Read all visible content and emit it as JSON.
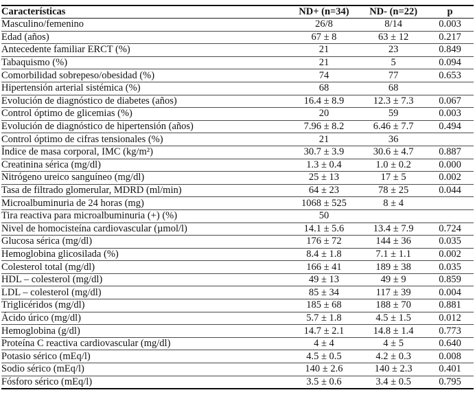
{
  "table": {
    "columns": [
      "Características",
      "ND+ (n=34)",
      "ND- (n=22)",
      "p"
    ],
    "rows": [
      {
        "label": "Masculino/femenino",
        "nd_plus": "26/8",
        "nd_minus": "8/14",
        "p": "0.003"
      },
      {
        "label": "Edad (años)",
        "nd_plus": "67 ± 8",
        "nd_minus": "63 ± 12",
        "p": "0.217"
      },
      {
        "label": "Antecedente familiar ERCT (%)",
        "nd_plus": "21",
        "nd_minus": "23",
        "p": "0.849"
      },
      {
        "label": "Tabaquismo (%)",
        "nd_plus": "21",
        "nd_minus": "5",
        "p": "0.094"
      },
      {
        "label": "Comorbilidad sobrepeso/obesidad (%)",
        "nd_plus": "74",
        "nd_minus": "77",
        "p": "0.653"
      },
      {
        "label": "Hipertensión arterial sistémica (%)",
        "nd_plus": "68",
        "nd_minus": "68",
        "p": ""
      },
      {
        "label": "Evolución de diagnóstico de diabetes (años)",
        "nd_plus": "16.4 ± 8.9",
        "nd_minus": "12.3 ± 7.3",
        "p": "0.067"
      },
      {
        "label": "Control óptimo de glicemias (%)",
        "nd_plus": "20",
        "nd_minus": "59",
        "p": "0.003"
      },
      {
        "label": "Evolución de diagnóstico de hipertensión (años)",
        "nd_plus": "7.96 ± 8.2",
        "nd_minus": "6.46 ± 7.7",
        "p": "0.494"
      },
      {
        "label": "Control óptimo de cifras tensionales (%)",
        "nd_plus": "21",
        "nd_minus": "36",
        "p": ""
      },
      {
        "label": "Índice de masa corporal, IMC (kg/m²)",
        "nd_plus": "30.7 ± 3.9",
        "nd_minus": "30.6 ± 4.7",
        "p": "0.887"
      },
      {
        "label": "Creatinina sérica (mg/dl)",
        "nd_plus": "1.3 ± 0.4",
        "nd_minus": "1.0 ± 0.2",
        "p": "0.000"
      },
      {
        "label": "Nitrógeno ureico sanguíneo (mg/dl)",
        "nd_plus": "25 ± 13",
        "nd_minus": "17 ± 5",
        "p": "0.002"
      },
      {
        "label": "Tasa de filtrado glomerular, MDRD (ml/min)",
        "nd_plus": "64 ± 23",
        "nd_minus": "78 ± 25",
        "p": "0.044"
      },
      {
        "label": "Microalbuminuria de 24 horas (mg)",
        "nd_plus": "1068 ± 525",
        "nd_minus": "8 ± 4",
        "p": ""
      },
      {
        "label": "Tira reactiva para microalbuminuria (+) (%)",
        "nd_plus": "50",
        "nd_minus": "",
        "p": ""
      },
      {
        "label": "Nivel de homocisteína cardiovascular (µmol/l)",
        "nd_plus": "14.1 ± 5.6",
        "nd_minus": "13.4 ± 7.9",
        "p": "0.724"
      },
      {
        "label": "Glucosa sérica (mg/dl)",
        "nd_plus": "176 ± 72",
        "nd_minus": "144 ± 36",
        "p": "0.035"
      },
      {
        "label": "Hemoglobina glicosilada (%)",
        "nd_plus": "8.4 ± 1.8",
        "nd_minus": "7.1 ± 1.1",
        "p": "0.002"
      },
      {
        "label": "Colesterol total (mg/dl)",
        "nd_plus": "166 ± 41",
        "nd_minus": "189 ± 38",
        "p": "0.035"
      },
      {
        "label": "HDL – colesterol (mg/dl)",
        "nd_plus": "49 ± 13",
        "nd_minus": "49 ± 9",
        "p": "0.859"
      },
      {
        "label": "LDL – colesterol (mg/dl)",
        "nd_plus": "85 ± 34",
        "nd_minus": "117 ± 39",
        "p": "0.004"
      },
      {
        "label": "Triglicéridos (mg/dl)",
        "nd_plus": "185 ± 68",
        "nd_minus": "188 ± 70",
        "p": "0.881"
      },
      {
        "label": "Ácido úrico (mg/dl)",
        "nd_plus": "5.7 ± 1.8",
        "nd_minus": "4.5 ± 1.5",
        "p": "0.012"
      },
      {
        "label": "Hemoglobina (g/dl)",
        "nd_plus": "14.7 ± 2.1",
        "nd_minus": "14.8 ± 1.4",
        "p": "0.773"
      },
      {
        "label": "Proteína C reactiva cardiovascular (mg/dl)",
        "nd_plus": "4 ± 4",
        "nd_minus": "4 ± 5",
        "p": "0.640"
      },
      {
        "label": "Potasio sérico (mEq/l)",
        "nd_plus": "4.5 ± 0.5",
        "nd_minus": "4.2 ± 0.3",
        "p": "0.008"
      },
      {
        "label": "Sodio sérico (mEq/l)",
        "nd_plus": "140 ± 2.6",
        "nd_minus": "140 ± 2.3",
        "p": "0.401"
      },
      {
        "label": "Fósforo sérico (mEq/l)",
        "nd_plus": "3.5 ± 0.6",
        "nd_minus": "3.4 ± 0.5",
        "p": "0.795"
      }
    ]
  }
}
